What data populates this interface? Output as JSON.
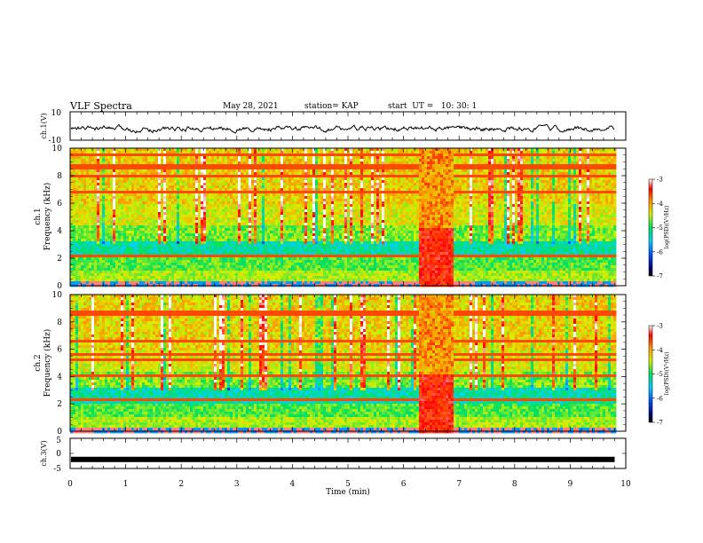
{
  "header": {
    "title": "VLF Spectra",
    "date": "May 28, 2021",
    "station": "station= KAP",
    "start": "start  UT =   10: 30: 1"
  },
  "chart_data": [
    {
      "type": "line",
      "panel": "ch1-waveform",
      "ylabel": "ch.1(V)",
      "ylim": [
        -10,
        10
      ],
      "yticks": [
        "10",
        "-10"
      ],
      "xlim": [
        0,
        10
      ],
      "x_extent": [
        0,
        9.8
      ],
      "note_values": "waveform oscillates roughly between -8 and 3 V, mean around -2 V",
      "y_approx_min": -8,
      "y_approx_max": 3,
      "y_approx_mean": -2
    },
    {
      "type": "heatmap",
      "panel": "ch1-spectrogram",
      "ylabel": "ch.1\nFrequency (kHz)",
      "ylabel_line1": "ch.1",
      "ylabel_line2": "Frequency (kHz)",
      "ylim": [
        0,
        10
      ],
      "yticks": [
        "0",
        "2",
        "4",
        "6",
        "8",
        "10"
      ],
      "xlim": [
        0,
        10
      ],
      "x_extent": [
        0,
        9.8
      ],
      "burst_interval_min": [
        6.25,
        6.9
      ],
      "colorbar": {
        "ticks": [
          "-3",
          "-4",
          "-5",
          "-6",
          "-7"
        ],
        "label": "log(PSD)(V²/Hz)",
        "range": [
          -7,
          -3
        ]
      }
    },
    {
      "type": "heatmap",
      "panel": "ch2-spectrogram",
      "ylabel_line1": "ch.2",
      "ylabel_line2": "Frequency (kHz)",
      "ylim": [
        0,
        10
      ],
      "yticks": [
        "0",
        "2",
        "4",
        "6",
        "8",
        "10"
      ],
      "xlim": [
        0,
        10
      ],
      "x_extent": [
        0,
        9.8
      ],
      "burst_interval_min": [
        6.25,
        6.9
      ],
      "colorbar": {
        "ticks": [
          "-3",
          "-4",
          "-5",
          "-6",
          "-7"
        ],
        "label": "log(PSD)(V²/Hz)",
        "range": [
          -7,
          -3
        ]
      }
    },
    {
      "type": "line",
      "panel": "ch3-waveform",
      "ylabel": "ch.3(V)",
      "ylim": [
        -5,
        5
      ],
      "yticks": [
        "5",
        "0",
        "-5"
      ],
      "xlim": [
        0,
        10
      ],
      "x_extent": [
        0,
        9.8
      ],
      "y_approx_mean": -2,
      "xlabel": "Time (min)",
      "xticks": [
        "0",
        "1",
        "2",
        "3",
        "4",
        "5",
        "6",
        "7",
        "8",
        "9",
        "10"
      ]
    }
  ]
}
